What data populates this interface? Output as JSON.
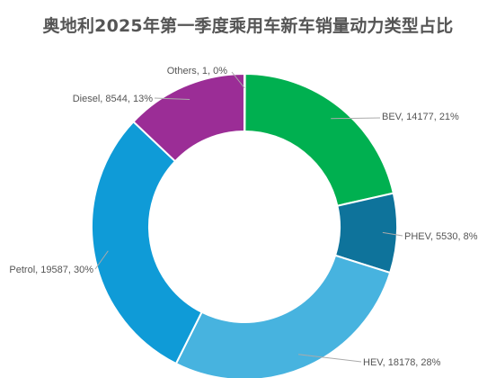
{
  "chart_data": {
    "type": "pie",
    "title": "奥地利2025年第一季度乘用车新车销量动力类型占比",
    "donut": true,
    "slices": [
      {
        "label": "BEV",
        "value": 14177,
        "percent": "21%",
        "color": "#00b050"
      },
      {
        "label": "PHEV",
        "value": 5530,
        "percent": "8%",
        "color": "#0e739b"
      },
      {
        "label": "HEV",
        "value": 18178,
        "percent": "28%",
        "color": "#47b3df"
      },
      {
        "label": "Petrol",
        "value": 19587,
        "percent": "30%",
        "color": "#0f9bd7"
      },
      {
        "label": "Diesel",
        "value": 8544,
        "percent": "13%",
        "color": "#9b2d96"
      },
      {
        "label": "Others",
        "value": 1,
        "percent": "0%",
        "color": "#d9d9d9"
      }
    ],
    "label_texts": [
      "BEV, 14177, 21%",
      "PHEV, 5530, 8%",
      "HEV, 18178, 28%",
      "Petrol, 19587, 30%",
      "Diesel, 8544, 13%",
      "Others, 1, 0%"
    ]
  }
}
